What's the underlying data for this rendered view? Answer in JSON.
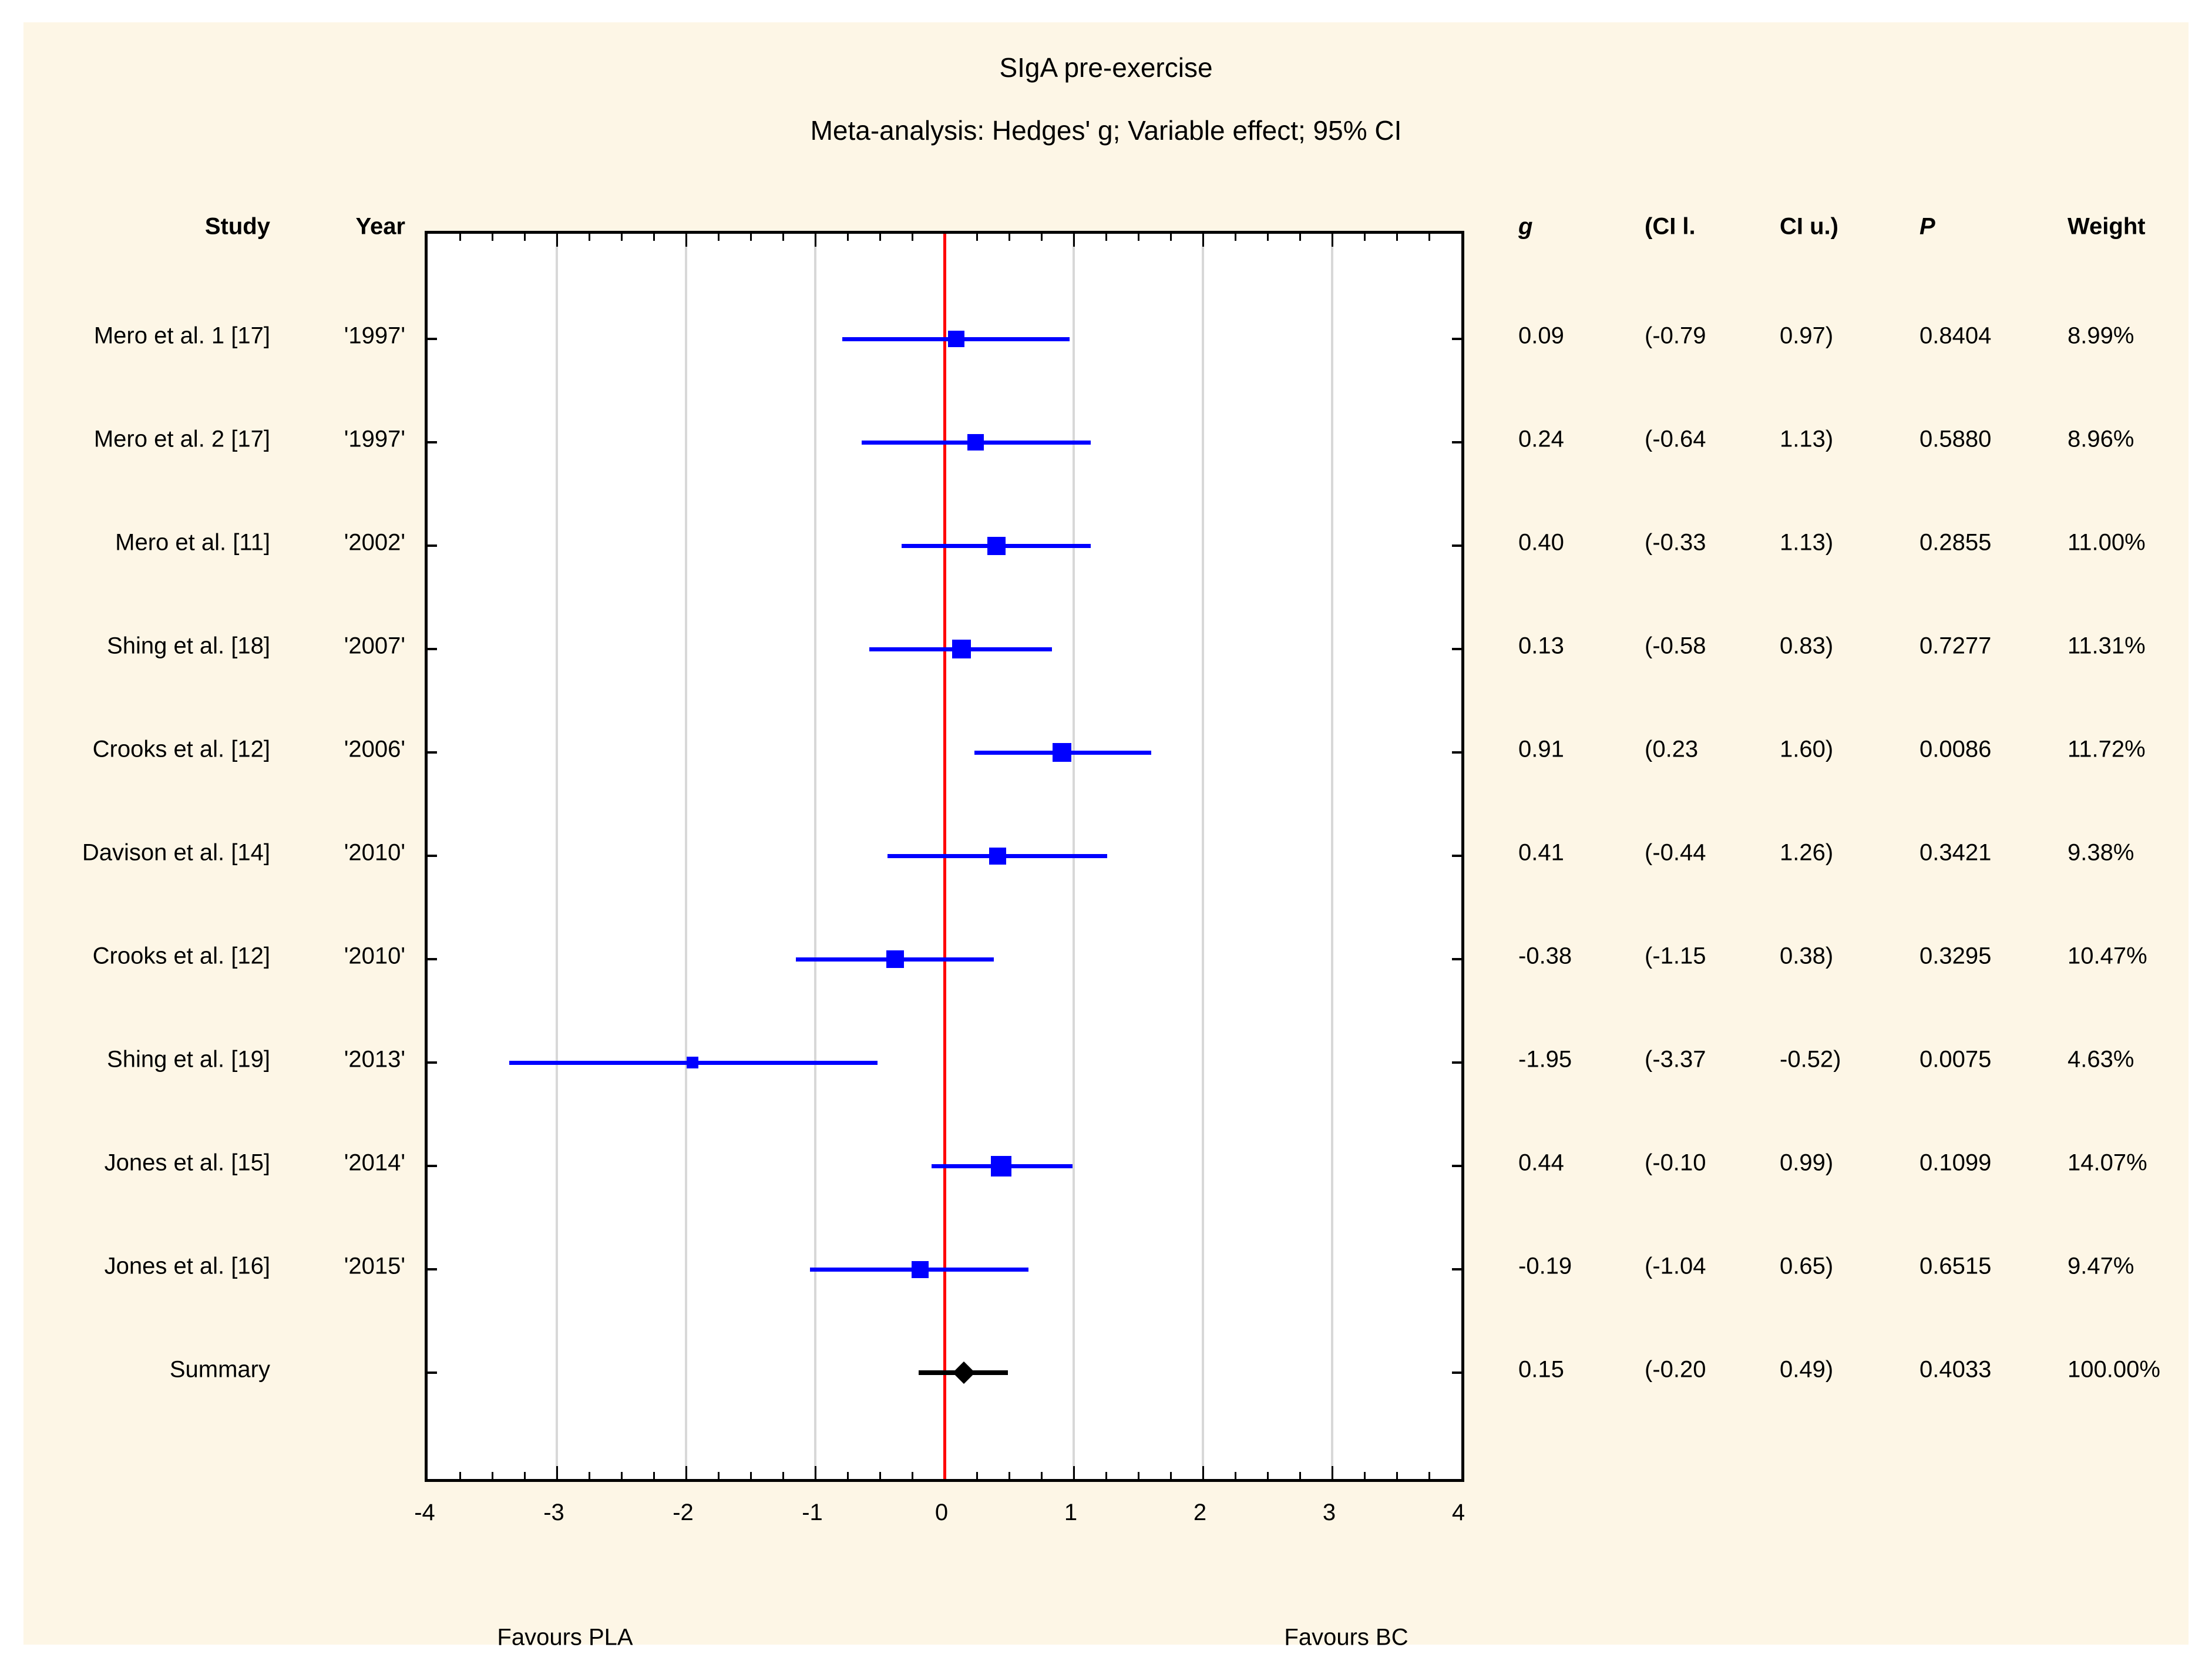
{
  "title": "SIgA pre-exercise",
  "subtitle": "Meta-analysis: Hedges' g; Variable effect; 95% CI",
  "table_headers": {
    "study": "Study",
    "year": "Year",
    "g": "g",
    "ci_lower": "(CI l.",
    "ci_upper": "CI u.)",
    "p": "P",
    "weight": "Weight"
  },
  "chart_data": {
    "type": "scatter",
    "subtype": "forest-plot",
    "title": "SIgA pre-exercise",
    "subtitle": "Meta-analysis: Hedges' g; Variable effect; 95% CI",
    "xlim": [
      -4,
      4
    ],
    "x_major_ticks": [
      -4,
      -3,
      -2,
      -1,
      0,
      1,
      2,
      3,
      4
    ],
    "x_minor_step": 0.25,
    "gridlines_x": [
      -3,
      -2,
      -1,
      1,
      2,
      3
    ],
    "reference_line_x": 0,
    "grid": true,
    "footer_left": "Favours PLA",
    "footer_right": "Favours BC",
    "rows": [
      {
        "study": "Mero et al. 1 [17]",
        "year": "'1997'",
        "g": 0.09,
        "ci_lower": -0.79,
        "ci_upper": 0.97,
        "g_text": "0.09",
        "ci_lower_text": "(-0.79",
        "ci_upper_text": "0.97)",
        "p_text": "0.8404",
        "weight": 8.99,
        "weight_text": "8.99%",
        "is_summary": false
      },
      {
        "study": "Mero et al. 2 [17]",
        "year": "'1997'",
        "g": 0.24,
        "ci_lower": -0.64,
        "ci_upper": 1.13,
        "g_text": "0.24",
        "ci_lower_text": "(-0.64",
        "ci_upper_text": "1.13)",
        "p_text": "0.5880",
        "weight": 8.96,
        "weight_text": "8.96%",
        "is_summary": false
      },
      {
        "study": "Mero et al. [11]",
        "year": "'2002'",
        "g": 0.4,
        "ci_lower": -0.33,
        "ci_upper": 1.13,
        "g_text": "0.40",
        "ci_lower_text": "(-0.33",
        "ci_upper_text": "1.13)",
        "p_text": "0.2855",
        "weight": 11.0,
        "weight_text": "11.00%",
        "is_summary": false
      },
      {
        "study": "Shing et al. [18]",
        "year": "'2007'",
        "g": 0.13,
        "ci_lower": -0.58,
        "ci_upper": 0.83,
        "g_text": "0.13",
        "ci_lower_text": "(-0.58",
        "ci_upper_text": "0.83)",
        "p_text": "0.7277",
        "weight": 11.31,
        "weight_text": "11.31%",
        "is_summary": false
      },
      {
        "study": "Crooks et al. [12]",
        "year": "'2006'",
        "g": 0.91,
        "ci_lower": 0.23,
        "ci_upper": 1.6,
        "g_text": "0.91",
        "ci_lower_text": "(0.23",
        "ci_upper_text": "1.60)",
        "p_text": "0.0086",
        "weight": 11.72,
        "weight_text": "11.72%",
        "is_summary": false
      },
      {
        "study": "Davison et al. [14]",
        "year": "'2010'",
        "g": 0.41,
        "ci_lower": -0.44,
        "ci_upper": 1.26,
        "g_text": "0.41",
        "ci_lower_text": "(-0.44",
        "ci_upper_text": "1.26)",
        "p_text": "0.3421",
        "weight": 9.38,
        "weight_text": "9.38%",
        "is_summary": false
      },
      {
        "study": "Crooks et al. [12]",
        "year": "'2010'",
        "g": -0.38,
        "ci_lower": -1.15,
        "ci_upper": 0.38,
        "g_text": "-0.38",
        "ci_lower_text": "(-1.15",
        "ci_upper_text": "0.38)",
        "p_text": "0.3295",
        "weight": 10.47,
        "weight_text": "10.47%",
        "is_summary": false
      },
      {
        "study": "Shing et al. [19]",
        "year": "'2013'",
        "g": -1.95,
        "ci_lower": -3.37,
        "ci_upper": -0.52,
        "g_text": "-1.95",
        "ci_lower_text": "(-3.37",
        "ci_upper_text": "-0.52)",
        "p_text": "0.0075",
        "weight": 4.63,
        "weight_text": "4.63%",
        "is_summary": false
      },
      {
        "study": "Jones et al. [15]",
        "year": "'2014'",
        "g": 0.44,
        "ci_lower": -0.1,
        "ci_upper": 0.99,
        "g_text": "0.44",
        "ci_lower_text": "(-0.10",
        "ci_upper_text": "0.99)",
        "p_text": "0.1099",
        "weight": 14.07,
        "weight_text": "14.07%",
        "is_summary": false
      },
      {
        "study": "Jones et al. [16]",
        "year": "'2015'",
        "g": -0.19,
        "ci_lower": -1.04,
        "ci_upper": 0.65,
        "g_text": "-0.19",
        "ci_lower_text": "(-1.04",
        "ci_upper_text": "0.65)",
        "p_text": "0.6515",
        "weight": 9.47,
        "weight_text": "9.47%",
        "is_summary": false
      },
      {
        "study": "Summary",
        "year": "",
        "g": 0.15,
        "ci_lower": -0.2,
        "ci_upper": 0.49,
        "g_text": "0.15",
        "ci_lower_text": "(-0.20",
        "ci_upper_text": "0.49)",
        "p_text": "0.4033",
        "weight": 100.0,
        "weight_text": "100.00%",
        "is_summary": true
      }
    ]
  },
  "colors": {
    "background_panel": "#FDF6E6",
    "plot_background": "#FFFFFF",
    "marker_blue": "#0000FF",
    "reference_red": "#FF0000",
    "summary_black": "#000000",
    "gridline_gray": "#D8D8D8",
    "text": "#000000"
  }
}
